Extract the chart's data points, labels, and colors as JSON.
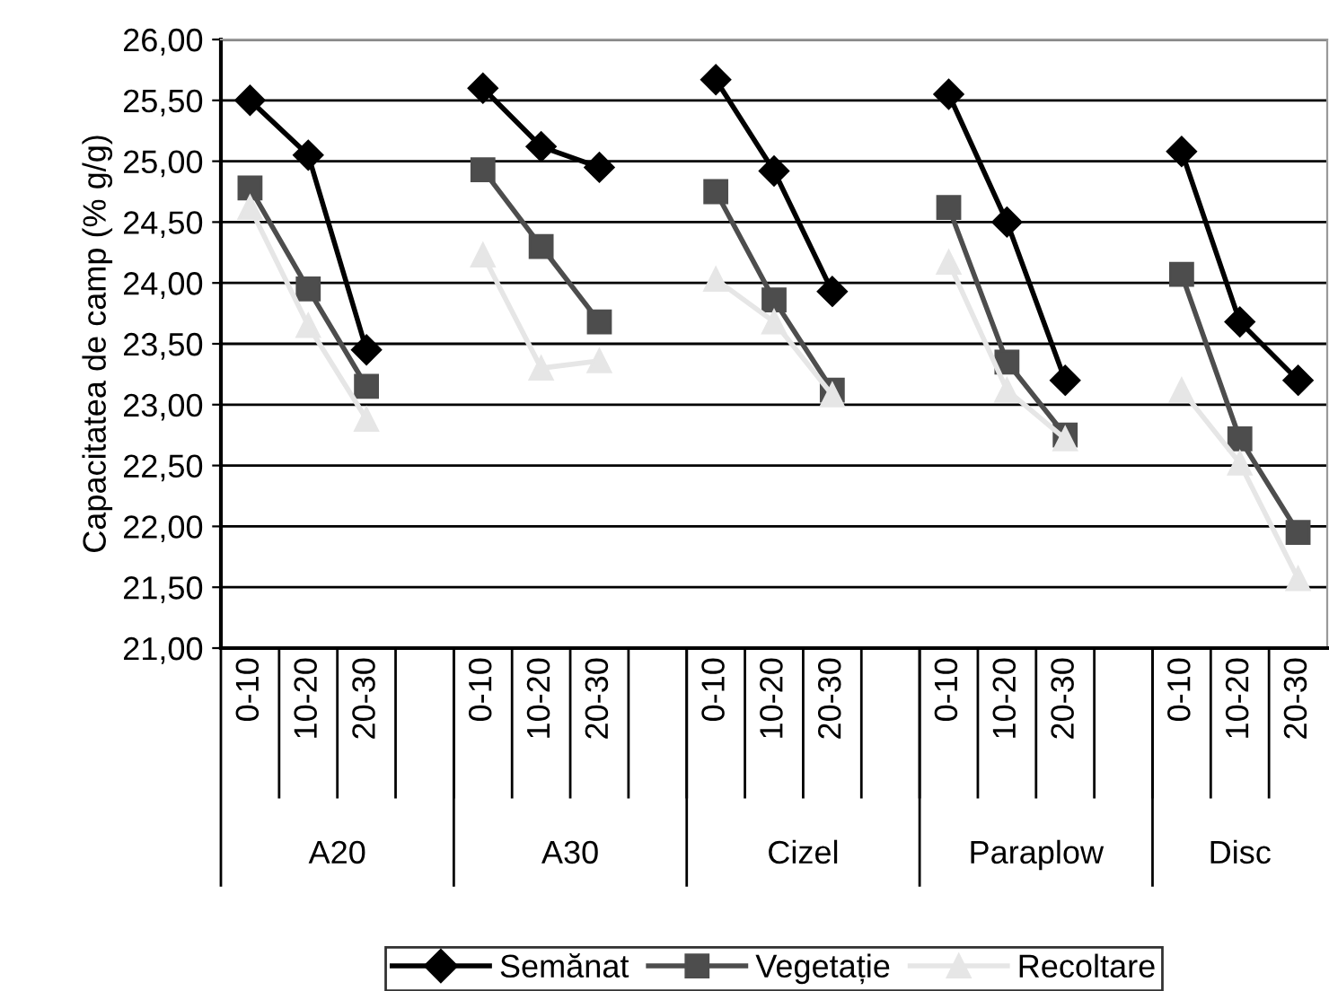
{
  "chart_data": {
    "type": "line",
    "ylabel": "Capacitatea de camp (% g/g)",
    "categories": [
      "0-10",
      "10-20",
      "20-30",
      null,
      "0-10",
      "10-20",
      "20-30",
      null,
      "0-10",
      "10-20",
      "20-30",
      null,
      "0-10",
      "10-20",
      "20-30",
      null,
      "0-10",
      "10-20",
      "20-30"
    ],
    "annotations": [
      "A20",
      "A30",
      "Cizel",
      "Paraplow",
      "Disc"
    ],
    "series": [
      {
        "name": "Semănat",
        "color": "#000000",
        "marker": "diamond",
        "values": [
          25.5,
          25.05,
          23.45,
          null,
          25.6,
          25.12,
          24.95,
          null,
          25.67,
          24.92,
          23.93,
          null,
          25.55,
          24.5,
          23.2,
          null,
          25.08,
          23.68,
          23.2
        ]
      },
      {
        "name": "Vegetație",
        "color": "#4d4d4d",
        "marker": "square",
        "values": [
          24.78,
          23.95,
          23.15,
          null,
          24.93,
          24.3,
          23.68,
          null,
          24.75,
          23.86,
          23.12,
          null,
          24.62,
          23.35,
          22.75,
          null,
          24.07,
          22.72,
          21.95
        ]
      },
      {
        "name": "Recoltare",
        "color": "#e6e6e6",
        "marker": "triangle",
        "values": [
          24.62,
          23.65,
          22.88,
          null,
          24.23,
          23.3,
          23.36,
          null,
          24.03,
          23.68,
          23.08,
          null,
          24.17,
          23.12,
          22.72,
          null,
          23.12,
          22.52,
          21.57
        ]
      }
    ],
    "ylim": [
      21,
      26
    ],
    "yticks": [
      {
        "value": 21,
        "label": "21,00"
      },
      {
        "value": 21.5,
        "label": "21,50"
      },
      {
        "value": 22,
        "label": "22,00"
      },
      {
        "value": 22.5,
        "label": "22,50"
      },
      {
        "value": 23,
        "label": "23,00"
      },
      {
        "value": 23.5,
        "label": "23,50"
      },
      {
        "value": 24,
        "label": "24,00"
      },
      {
        "value": 24.5,
        "label": "24,50"
      },
      {
        "value": 25,
        "label": "25,00"
      },
      {
        "value": 25.5,
        "label": "25,50"
      },
      {
        "value": 26,
        "label": "26,00"
      }
    ],
    "grid": "y",
    "legend": "bottom"
  }
}
